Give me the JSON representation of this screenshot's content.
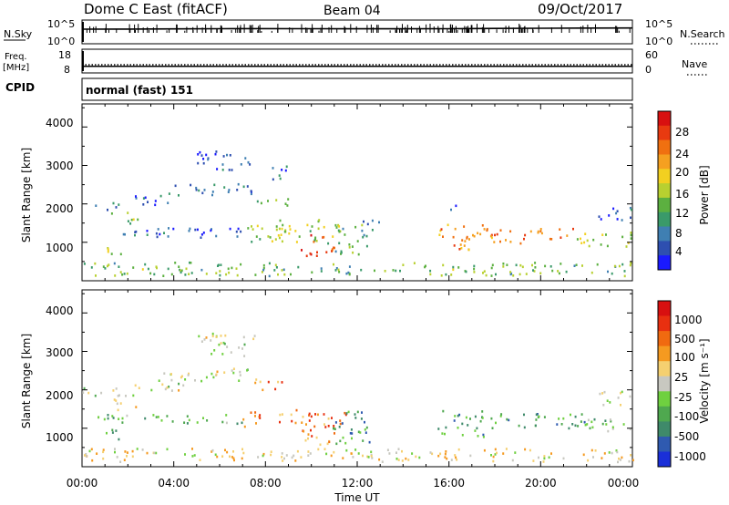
{
  "header": {
    "station": "Dome C East (fitACF)",
    "beam": "Beam 04",
    "date": "09/Oct/2017"
  },
  "chart_data": [
    {
      "type": "line",
      "panel": "noise",
      "left_label": "N.Sky",
      "right_label": "N.Search",
      "left_ticks": [
        "10^5",
        "10^0"
      ],
      "right_ticks": [
        "10^5",
        "10^0"
      ],
      "scale": "log",
      "ylim": [
        1,
        100000
      ],
      "x": [
        0,
        2,
        4,
        6,
        8,
        10,
        12,
        14,
        16,
        18,
        20,
        22,
        24
      ],
      "series": [
        {
          "values": [
            1500,
            1600,
            1800,
            2000,
            2100,
            2000,
            1900,
            1900,
            2000,
            2300,
            2600,
            2800,
            3000
          ]
        }
      ]
    },
    {
      "type": "line",
      "panel": "freq-nave",
      "left_label": "Freq.",
      "left_unit": "[MHz]",
      "right_label": "Nave",
      "left_ticks": [
        "18",
        "8"
      ],
      "right_ticks": [
        "60",
        "0"
      ],
      "ylim": [
        8,
        18
      ],
      "x": [
        0,
        4,
        8,
        12,
        16,
        20,
        24
      ],
      "series": [
        {
          "values": [
            10.4,
            10.4,
            10.4,
            10.4,
            10.4,
            10.4,
            10.4
          ]
        },
        {
          "values": [
            11.2,
            11.2,
            11.2,
            11.2,
            11.2,
            11.2,
            11.2
          ]
        }
      ]
    },
    {
      "type": "heatmap",
      "panel": "cpid",
      "left_label": "CPID",
      "mode": "normal (fast) 151"
    },
    {
      "type": "heatmap",
      "panel": "power",
      "ylabel": "Slant Range [km]",
      "yticks": [
        "4000",
        "3000",
        "2000",
        "1000"
      ],
      "ylim": [
        0,
        4600
      ],
      "xlim": [
        0,
        24
      ],
      "colorbar_label": "Power [dB]",
      "colorbar_ticks": [
        "28",
        "24",
        "20",
        "16",
        "12",
        "8",
        "4"
      ],
      "colors": [
        "#1a1aff",
        "#2e4fb0",
        "#3f7fb2",
        "#3a9a6a",
        "#5cb040",
        "#b8d030",
        "#f2d020",
        "#f5a020",
        "#f07010",
        "#e83a10",
        "#d81010"
      ],
      "regions": [
        {
          "t0": 0.0,
          "t1": 1.6,
          "r0": 1850,
          "r1": 2050,
          "level": 0.25
        },
        {
          "t0": 1.2,
          "t1": 2.4,
          "r0": 1500,
          "r1": 1800,
          "level": 0.45
        },
        {
          "t0": 1.0,
          "t1": 2.0,
          "r0": 700,
          "r1": 1000,
          "level": 0.5
        },
        {
          "t0": 2.2,
          "t1": 4.5,
          "r0": 2000,
          "r1": 2250,
          "level": 0.2
        },
        {
          "t0": 3.5,
          "t1": 7.5,
          "r0": 2250,
          "r1": 2550,
          "level": 0.2
        },
        {
          "t0": 5.0,
          "t1": 7.5,
          "r0": 2900,
          "r1": 3400,
          "level": 0.15
        },
        {
          "t0": 8.0,
          "t1": 9.0,
          "r0": 2600,
          "r1": 3000,
          "level": 0.2
        },
        {
          "t0": 0.5,
          "t1": 7.0,
          "r0": 1150,
          "r1": 1400,
          "level": 0.15
        },
        {
          "t0": 7.0,
          "t1": 8.5,
          "r0": 1000,
          "r1": 1500,
          "level": 0.45
        },
        {
          "t0": 8.5,
          "t1": 11.5,
          "r0": 1000,
          "r1": 1650,
          "level": 0.5
        },
        {
          "t0": 9.5,
          "t1": 11.0,
          "r0": 650,
          "r1": 1250,
          "level": 0.85
        },
        {
          "t0": 11.0,
          "t1": 12.5,
          "r0": 700,
          "r1": 1500,
          "level": 0.35
        },
        {
          "t0": 7.5,
          "t1": 9.0,
          "r0": 1950,
          "r1": 2200,
          "level": 0.4
        },
        {
          "t0": 15.5,
          "t1": 17.5,
          "r0": 800,
          "r1": 1500,
          "level": 0.7
        },
        {
          "t0": 17.5,
          "t1": 21.5,
          "r0": 1000,
          "r1": 1400,
          "level": 0.75
        },
        {
          "t0": 21.5,
          "t1": 24.0,
          "r0": 900,
          "r1": 1300,
          "level": 0.45
        },
        {
          "t0": 22.5,
          "t1": 24.0,
          "r0": 1600,
          "r1": 2000,
          "level": 0.2
        },
        {
          "t0": 16.0,
          "t1": 16.5,
          "r0": 1850,
          "r1": 2050,
          "level": 0.2
        },
        {
          "t0": 12.0,
          "t1": 13.0,
          "r0": 1350,
          "r1": 1600,
          "level": 0.3
        },
        {
          "t0": 0.0,
          "t1": 24.0,
          "r0": 150,
          "r1": 500,
          "level": 0.4
        }
      ]
    },
    {
      "type": "heatmap",
      "panel": "velocity",
      "ylabel": "Slant Range [km]",
      "yticks": [
        "4000",
        "3000",
        "2000",
        "1000"
      ],
      "ylim": [
        0,
        4600
      ],
      "xlim": [
        0,
        24
      ],
      "xlabel": "Time UT",
      "xticks": [
        "00:00",
        "04:00",
        "08:00",
        "12:00",
        "16:00",
        "20:00",
        "00:00"
      ],
      "colorbar_label": "Velocity [m s⁻¹]",
      "colorbar_ticks": [
        "1000",
        "500",
        "100",
        "25",
        "-25",
        "-100",
        "-500",
        "-1000"
      ],
      "colors": [
        "#1a2fd8",
        "#2f5ab0",
        "#3f8a6a",
        "#4fa84f",
        "#6fd040",
        "#c8c8c0",
        "#f5d070",
        "#f59a20",
        "#f06a10",
        "#e83010",
        "#d81010"
      ],
      "regions": [
        {
          "t0": 0.0,
          "t1": 1.6,
          "r0": 1850,
          "r1": 2100,
          "level": 0.5
        },
        {
          "t0": 1.2,
          "t1": 2.4,
          "r0": 1450,
          "r1": 1900,
          "level": 0.5
        },
        {
          "t0": 1.0,
          "t1": 2.0,
          "r0": 700,
          "r1": 1000,
          "level": 0.35
        },
        {
          "t0": 2.2,
          "t1": 4.5,
          "r0": 2000,
          "r1": 2300,
          "level": 0.5
        },
        {
          "t0": 3.5,
          "t1": 7.5,
          "r0": 2250,
          "r1": 2600,
          "level": 0.5
        },
        {
          "t0": 5.0,
          "t1": 7.5,
          "r0": 2900,
          "r1": 3500,
          "level": 0.5
        },
        {
          "t0": 0.5,
          "t1": 7.0,
          "r0": 1150,
          "r1": 1400,
          "level": 0.35
        },
        {
          "t0": 7.0,
          "t1": 11.5,
          "r0": 1050,
          "r1": 1500,
          "level": 0.75
        },
        {
          "t0": 9.5,
          "t1": 11.0,
          "r0": 600,
          "r1": 1100,
          "level": 0.7
        },
        {
          "t0": 10.8,
          "t1": 12.5,
          "r0": 600,
          "r1": 1500,
          "level": 0.25
        },
        {
          "t0": 7.5,
          "t1": 9.0,
          "r0": 2000,
          "r1": 2300,
          "level": 0.75
        },
        {
          "t0": 15.5,
          "t1": 17.5,
          "r0": 800,
          "r1": 1500,
          "level": 0.3
        },
        {
          "t0": 17.5,
          "t1": 22.0,
          "r0": 1000,
          "r1": 1400,
          "level": 0.28
        },
        {
          "t0": 22.0,
          "t1": 24.0,
          "r0": 900,
          "r1": 1300,
          "level": 0.35
        },
        {
          "t0": 22.5,
          "t1": 24.0,
          "r0": 1600,
          "r1": 2000,
          "level": 0.5
        },
        {
          "t0": 0.0,
          "t1": 24.0,
          "r0": 150,
          "r1": 500,
          "level": 0.55
        }
      ]
    }
  ]
}
